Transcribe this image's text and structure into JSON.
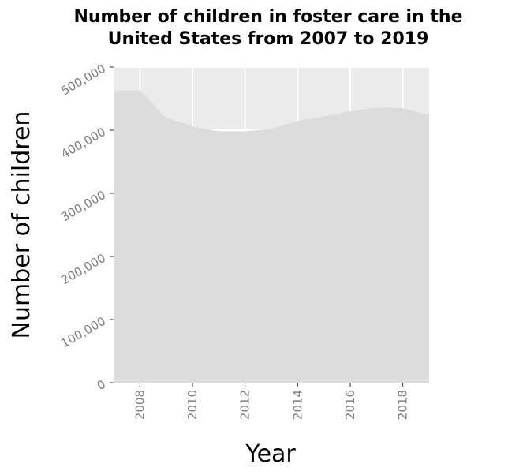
{
  "chart_data": {
    "type": "area",
    "title_lines": [
      "Number of children in foster care in the",
      "United States from 2007 to 2019"
    ],
    "xlabel": "Year",
    "ylabel": "Number of children",
    "x": [
      2007,
      2008,
      2009,
      2010,
      2011,
      2012,
      2013,
      2014,
      2015,
      2016,
      2017,
      2018,
      2019
    ],
    "series": [
      {
        "values": [
          463000,
          463000,
          420000,
          406000,
          398000,
          398000,
          402000,
          415000,
          422000,
          430000,
          436000,
          435000,
          424000
        ]
      }
    ],
    "xlim": [
      2007,
      2019
    ],
    "ylim": [
      0,
      500000
    ],
    "x_ticks": [
      2008,
      2010,
      2012,
      2014,
      2016,
      2018
    ],
    "x_tick_labels": [
      "2008",
      "2010",
      "2012",
      "2014",
      "2016",
      "2018"
    ],
    "y_ticks": [
      0,
      100000,
      200000,
      300000,
      400000,
      500000
    ],
    "y_tick_labels": [
      "0",
      "100,000",
      "200,000",
      "300,000",
      "400,000",
      "500,000"
    ],
    "grid": true,
    "colors": {
      "panel_background": "#ebebeb",
      "area_fill": "#dcdcdc",
      "gridline": "#ffffff",
      "tick_text": "#7f7f7f"
    }
  }
}
